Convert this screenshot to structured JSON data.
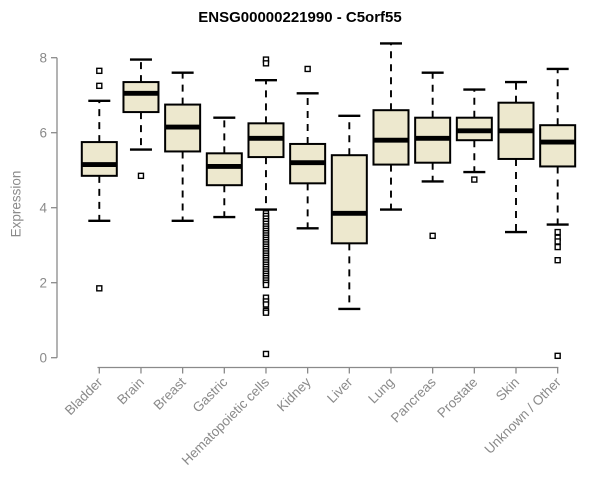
{
  "header": {
    "title": "ENSG00000221990 - C5orf55"
  },
  "chart_data": {
    "type": "boxplot",
    "title": "ENSG00000221990 - C5orf55",
    "xlabel": "",
    "ylabel": "Expression",
    "ylim": [
      0,
      8.5
    ],
    "yticks": [
      0,
      2,
      4,
      6,
      8
    ],
    "grid": false,
    "legend_position": "none",
    "colors": {
      "box_fill": "#ede8ce",
      "box_stroke": "#000000",
      "median": "#000000",
      "whisker": "#000000",
      "outlier_stroke": "#000000",
      "outlier_fill": "#ffffff",
      "axis": "#8a8a8a",
      "tick_label": "#8a8a8a",
      "title": "#000000"
    },
    "categories": [
      "Bladder",
      "Brain",
      "Breast",
      "Gastric",
      "Hematopoietic cells",
      "Kidney",
      "Liver",
      "Lung",
      "Pancreas",
      "Prostate",
      "Skin",
      "Unknown / Other"
    ],
    "boxes": [
      {
        "category": "Bladder",
        "whisker_low": 3.65,
        "q1": 4.85,
        "median": 5.15,
        "q3": 5.75,
        "whisker_high": 6.85,
        "outliers": [
          7.65,
          7.25,
          1.85
        ]
      },
      {
        "category": "Brain",
        "whisker_low": 5.55,
        "q1": 6.55,
        "median": 7.05,
        "q3": 7.35,
        "whisker_high": 7.95,
        "outliers": [
          4.85
        ]
      },
      {
        "category": "Breast",
        "whisker_low": 3.65,
        "q1": 5.5,
        "median": 6.15,
        "q3": 6.75,
        "whisker_high": 7.6,
        "outliers": []
      },
      {
        "category": "Gastric",
        "whisker_low": 3.75,
        "q1": 4.6,
        "median": 5.1,
        "q3": 5.45,
        "whisker_high": 6.4,
        "outliers": []
      },
      {
        "category": "Hematopoietic cells",
        "whisker_low": 3.95,
        "q1": 5.35,
        "median": 5.85,
        "q3": 6.25,
        "whisker_high": 7.4,
        "outliers": [
          7.95,
          7.85,
          3.85,
          3.78,
          3.71,
          3.64,
          3.57,
          3.5,
          3.44,
          3.38,
          3.32,
          3.26,
          3.2,
          3.14,
          3.08,
          3.02,
          2.96,
          2.9,
          2.84,
          2.78,
          2.72,
          2.66,
          2.6,
          2.54,
          2.48,
          2.42,
          2.36,
          2.3,
          2.24,
          2.18,
          2.12,
          2.06,
          2.0,
          1.94,
          1.6,
          1.5,
          1.42,
          1.25,
          1.2,
          0.1
        ]
      },
      {
        "category": "Kidney",
        "whisker_low": 3.45,
        "q1": 4.65,
        "median": 5.2,
        "q3": 5.7,
        "whisker_high": 7.05,
        "outliers": [
          7.7
        ]
      },
      {
        "category": "Liver",
        "whisker_low": 1.3,
        "q1": 3.05,
        "median": 3.85,
        "q3": 5.4,
        "whisker_high": 6.45,
        "outliers": []
      },
      {
        "category": "Lung",
        "whisker_low": 3.95,
        "q1": 5.15,
        "median": 5.8,
        "q3": 6.6,
        "whisker_high": 8.38,
        "outliers": []
      },
      {
        "category": "Pancreas",
        "whisker_low": 4.7,
        "q1": 5.2,
        "median": 5.85,
        "q3": 6.4,
        "whisker_high": 7.6,
        "outliers": [
          3.25
        ]
      },
      {
        "category": "Prostate",
        "whisker_low": 4.95,
        "q1": 5.8,
        "median": 6.05,
        "q3": 6.4,
        "whisker_high": 7.15,
        "outliers": [
          4.75
        ]
      },
      {
        "category": "Skin",
        "whisker_low": 3.35,
        "q1": 5.3,
        "median": 6.05,
        "q3": 6.8,
        "whisker_high": 7.35,
        "outliers": []
      },
      {
        "category": "Unknown / Other",
        "whisker_low": 3.55,
        "q1": 5.1,
        "median": 5.75,
        "q3": 6.2,
        "whisker_high": 7.7,
        "outliers": [
          3.35,
          3.2,
          3.1,
          2.95,
          2.6,
          0.05
        ]
      }
    ]
  }
}
